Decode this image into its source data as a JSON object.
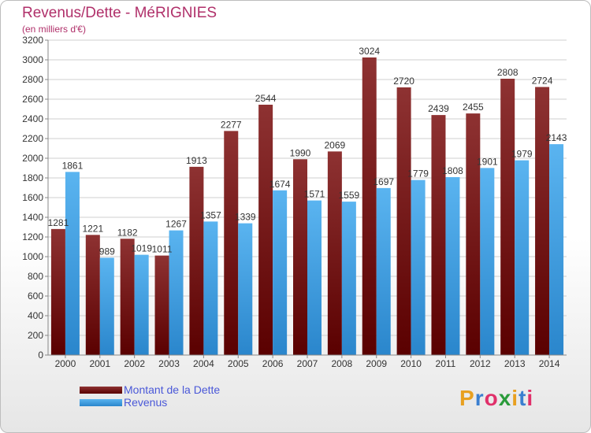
{
  "header": {
    "title": "Revenus/Dette - MéRIGNIES",
    "subtitle": "(en milliers d'€)"
  },
  "legend": {
    "items": [
      {
        "label": "Montant de la Dette",
        "color": "#7a1414"
      },
      {
        "label": "Revenus",
        "color": "#3d9ee6"
      }
    ]
  },
  "logo": {
    "letters": [
      "P",
      "r",
      "o",
      "x",
      "i",
      "t",
      "i"
    ],
    "colors": [
      "#e8a020",
      "#3a7fd0",
      "#e0306a",
      "#2a9b3a",
      "#e8a020",
      "#3a7fd0",
      "#e0306a"
    ]
  },
  "chart_data": {
    "type": "bar",
    "categories": [
      "2000",
      "2001",
      "2002",
      "2003",
      "2004",
      "2005",
      "2006",
      "2007",
      "2008",
      "2009",
      "2010",
      "2011",
      "2012",
      "2013",
      "2014"
    ],
    "series": [
      {
        "name": "Montant de la Dette",
        "color": "#7a1414",
        "values": [
          1281,
          1221,
          1182,
          1011,
          1913,
          2277,
          2544,
          1990,
          2069,
          3024,
          2720,
          2439,
          2455,
          2808,
          2724
        ],
        "labels": [
          "1281",
          "1221",
          "1182",
          "1011",
          "1913",
          "2277",
          "2544",
          "1990",
          "2069",
          "3024",
          "2720",
          "2439",
          "2455",
          "2808",
          "2724"
        ]
      },
      {
        "name": "Revenus",
        "color": "#3d9ee6",
        "values": [
          1861,
          989,
          1019,
          1267,
          1357,
          1339,
          1674,
          1571,
          1559,
          1697,
          1779,
          1808,
          1901,
          1979,
          2143
        ],
        "labels": [
          "1861",
          "989",
          "1019",
          "1267",
          "1357",
          "1339",
          "1674",
          "1571",
          "1559",
          "1697",
          "1779",
          "1808",
          "1901",
          "1979",
          "2143"
        ]
      }
    ],
    "ylim": [
      0,
      3200
    ],
    "yticks": [
      "0",
      "200",
      "400",
      "600",
      "800",
      "1000",
      "1200",
      "1400",
      "1600",
      "1800",
      "2000",
      "2200",
      "2400",
      "2600",
      "2800",
      "3000",
      "3200"
    ],
    "grid": true
  }
}
